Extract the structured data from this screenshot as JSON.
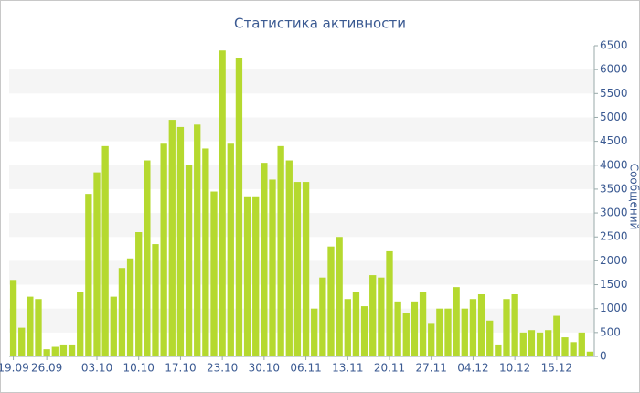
{
  "chart_data": {
    "type": "bar",
    "title": "Статистика активности",
    "y_label": "Сообщений",
    "categories": [
      "19.09",
      null,
      null,
      null,
      "26.09",
      null,
      null,
      null,
      null,
      null,
      "03.10",
      null,
      null,
      null,
      null,
      "10.10",
      null,
      null,
      null,
      null,
      "17.10",
      null,
      null,
      null,
      null,
      "23.10",
      null,
      null,
      null,
      null,
      "30.10",
      null,
      null,
      null,
      null,
      "06.11",
      null,
      null,
      null,
      null,
      "13.11",
      null,
      null,
      null,
      null,
      "20.11",
      null,
      null,
      null,
      null,
      "27.11",
      null,
      null,
      null,
      null,
      "04.12",
      null,
      null,
      null,
      null,
      "10.12",
      null,
      null,
      null,
      null,
      "15.12",
      null,
      null,
      null,
      null
    ],
    "values": [
      1600,
      600,
      1250,
      1200,
      150,
      200,
      250,
      250,
      1350,
      3400,
      3850,
      4400,
      1250,
      1850,
      2050,
      2600,
      4100,
      2350,
      4450,
      4950,
      4800,
      4000,
      4850,
      4350,
      3450,
      6400,
      4450,
      6250,
      3350,
      3350,
      4050,
      3700,
      4400,
      4100,
      3650,
      3650,
      1000,
      1650,
      2300,
      2500,
      1200,
      1350,
      1050,
      1700,
      1650,
      2200,
      1150,
      900,
      1150,
      1350,
      700,
      1000,
      1000,
      1450,
      1000,
      1200,
      1300,
      750,
      250,
      1200,
      1300,
      500,
      550,
      500,
      550,
      850,
      400,
      300,
      500,
      100
    ],
    "color": "#b5d92f",
    "ylim": [
      0,
      6500
    ],
    "yticks": [
      0,
      500,
      1000,
      1500,
      2000,
      2500,
      3000,
      3500,
      4000,
      4500,
      5000,
      5500,
      6000,
      6500
    ],
    "grid": "bands"
  }
}
